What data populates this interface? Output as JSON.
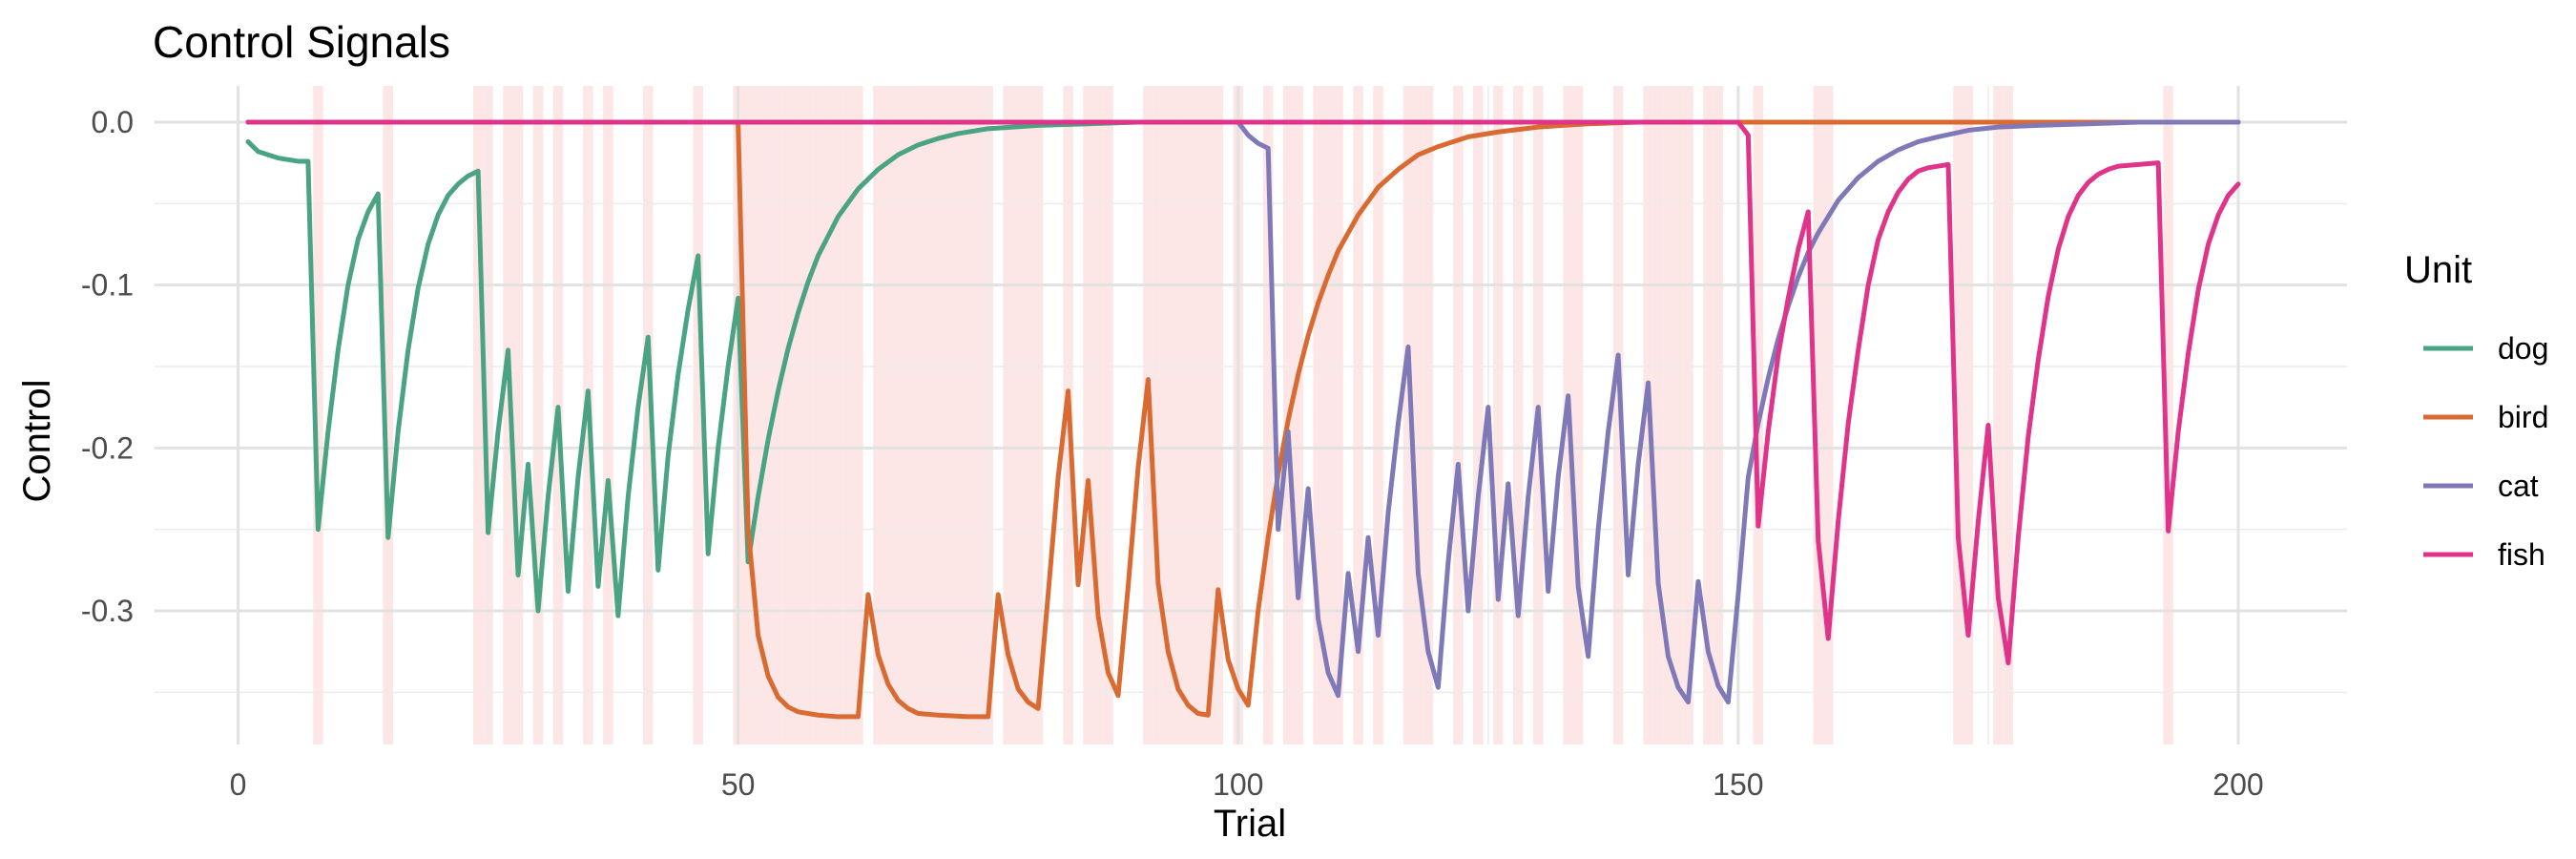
{
  "chart_data": {
    "type": "line",
    "title": "Control Signals",
    "xlabel": "Trial",
    "ylabel": "Control",
    "xlim": [
      1,
      200
    ],
    "ylim": [
      -0.38,
      0.0
    ],
    "x_ticks": [
      0,
      50,
      100,
      150,
      200
    ],
    "y_ticks": [
      0.0,
      -0.1,
      -0.2,
      -0.3
    ],
    "y_tick_labels": [
      "0.0",
      "-0.1",
      "-0.2",
      "-0.3"
    ],
    "grid": true,
    "legend": {
      "title": "Unit",
      "position": "right"
    },
    "highlight_color": "#fde6e6",
    "highlighted_trials": [
      8,
      15,
      24,
      25,
      27,
      28,
      30,
      32,
      35,
      37,
      41,
      46,
      50,
      51,
      52,
      53,
      54,
      55,
      56,
      57,
      58,
      59,
      60,
      61,
      62,
      64,
      65,
      66,
      67,
      68,
      69,
      70,
      71,
      72,
      73,
      74,
      75,
      77,
      78,
      79,
      80,
      83,
      85,
      86,
      87,
      91,
      92,
      93,
      94,
      95,
      96,
      97,
      98,
      100,
      103,
      105,
      106,
      108,
      109,
      110,
      112,
      114,
      117,
      118,
      119,
      122,
      124,
      126,
      128,
      130,
      133,
      134,
      138,
      141,
      142,
      143,
      144,
      145,
      147,
      148,
      152,
      158,
      159,
      172,
      173,
      176,
      177,
      193
    ],
    "series": [
      {
        "name": "dog",
        "color": "#4aa383",
        "points": [
          [
            1,
            -0.012
          ],
          [
            2,
            -0.018
          ],
          [
            4,
            -0.022
          ],
          [
            6,
            -0.024
          ],
          [
            7,
            -0.024
          ],
          [
            8,
            -0.25
          ],
          [
            9,
            -0.19
          ],
          [
            10,
            -0.14
          ],
          [
            11,
            -0.1
          ],
          [
            12,
            -0.072
          ],
          [
            13,
            -0.055
          ],
          [
            14,
            -0.044
          ],
          [
            15,
            -0.255
          ],
          [
            16,
            -0.19
          ],
          [
            17,
            -0.14
          ],
          [
            18,
            -0.102
          ],
          [
            19,
            -0.075
          ],
          [
            20,
            -0.057
          ],
          [
            21,
            -0.045
          ],
          [
            22,
            -0.038
          ],
          [
            23,
            -0.033
          ],
          [
            24,
            -0.03
          ],
          [
            25,
            -0.252
          ],
          [
            26,
            -0.19
          ],
          [
            27,
            -0.14
          ],
          [
            28,
            -0.278
          ],
          [
            29,
            -0.21
          ],
          [
            30,
            -0.3
          ],
          [
            31,
            -0.23
          ],
          [
            32,
            -0.175
          ],
          [
            33,
            -0.288
          ],
          [
            34,
            -0.218
          ],
          [
            35,
            -0.165
          ],
          [
            36,
            -0.285
          ],
          [
            37,
            -0.22
          ],
          [
            38,
            -0.303
          ],
          [
            39,
            -0.23
          ],
          [
            40,
            -0.175
          ],
          [
            41,
            -0.132
          ],
          [
            42,
            -0.275
          ],
          [
            43,
            -0.205
          ],
          [
            44,
            -0.155
          ],
          [
            45,
            -0.115
          ],
          [
            46,
            -0.082
          ],
          [
            47,
            -0.265
          ],
          [
            48,
            -0.2
          ],
          [
            49,
            -0.15
          ],
          [
            50,
            -0.108
          ],
          [
            51,
            -0.27
          ],
          [
            52,
            -0.23
          ],
          [
            53,
            -0.195
          ],
          [
            54,
            -0.165
          ],
          [
            55,
            -0.139
          ],
          [
            56,
            -0.117
          ],
          [
            57,
            -0.098
          ],
          [
            58,
            -0.082
          ],
          [
            60,
            -0.058
          ],
          [
            62,
            -0.041
          ],
          [
            64,
            -0.029
          ],
          [
            66,
            -0.02
          ],
          [
            68,
            -0.014
          ],
          [
            70,
            -0.01
          ],
          [
            72,
            -0.007
          ],
          [
            75,
            -0.004
          ],
          [
            80,
            -0.002
          ],
          [
            85,
            -0.001
          ],
          [
            90,
            0.0
          ],
          [
            200,
            0.0
          ]
        ]
      },
      {
        "name": "bird",
        "color": "#d96a32",
        "points": [
          [
            1,
            0.0
          ],
          [
            50,
            0.0
          ],
          [
            51,
            -0.25
          ],
          [
            52,
            -0.315
          ],
          [
            53,
            -0.34
          ],
          [
            54,
            -0.353
          ],
          [
            55,
            -0.359
          ],
          [
            56,
            -0.362
          ],
          [
            58,
            -0.364
          ],
          [
            60,
            -0.365
          ],
          [
            62,
            -0.365
          ],
          [
            63,
            -0.29
          ],
          [
            64,
            -0.327
          ],
          [
            65,
            -0.345
          ],
          [
            66,
            -0.355
          ],
          [
            67,
            -0.36
          ],
          [
            68,
            -0.363
          ],
          [
            70,
            -0.364
          ],
          [
            73,
            -0.365
          ],
          [
            75,
            -0.365
          ],
          [
            76,
            -0.29
          ],
          [
            77,
            -0.327
          ],
          [
            78,
            -0.348
          ],
          [
            79,
            -0.356
          ],
          [
            80,
            -0.36
          ],
          [
            81,
            -0.29
          ],
          [
            82,
            -0.218
          ],
          [
            83,
            -0.165
          ],
          [
            84,
            -0.284
          ],
          [
            85,
            -0.22
          ],
          [
            86,
            -0.303
          ],
          [
            87,
            -0.338
          ],
          [
            88,
            -0.352
          ],
          [
            89,
            -0.285
          ],
          [
            90,
            -0.212
          ],
          [
            91,
            -0.158
          ],
          [
            92,
            -0.283
          ],
          [
            93,
            -0.325
          ],
          [
            94,
            -0.348
          ],
          [
            95,
            -0.358
          ],
          [
            96,
            -0.363
          ],
          [
            97,
            -0.364
          ],
          [
            98,
            -0.287
          ],
          [
            99,
            -0.33
          ],
          [
            100,
            -0.348
          ],
          [
            101,
            -0.358
          ],
          [
            102,
            -0.3
          ],
          [
            103,
            -0.255
          ],
          [
            104,
            -0.216
          ],
          [
            105,
            -0.183
          ],
          [
            106,
            -0.155
          ],
          [
            107,
            -0.131
          ],
          [
            108,
            -0.111
          ],
          [
            109,
            -0.094
          ],
          [
            110,
            -0.079
          ],
          [
            112,
            -0.057
          ],
          [
            114,
            -0.04
          ],
          [
            116,
            -0.029
          ],
          [
            118,
            -0.02
          ],
          [
            120,
            -0.015
          ],
          [
            123,
            -0.009
          ],
          [
            126,
            -0.006
          ],
          [
            130,
            -0.003
          ],
          [
            135,
            -0.001
          ],
          [
            140,
            0.0
          ],
          [
            200,
            0.0
          ]
        ]
      },
      {
        "name": "cat",
        "color": "#8079b8",
        "points": [
          [
            1,
            0.0
          ],
          [
            100,
            0.0
          ],
          [
            101,
            -0.008
          ],
          [
            102,
            -0.013
          ],
          [
            103,
            -0.016
          ],
          [
            104,
            -0.25
          ],
          [
            105,
            -0.19
          ],
          [
            106,
            -0.292
          ],
          [
            107,
            -0.225
          ],
          [
            108,
            -0.305
          ],
          [
            109,
            -0.338
          ],
          [
            110,
            -0.352
          ],
          [
            111,
            -0.277
          ],
          [
            112,
            -0.325
          ],
          [
            113,
            -0.255
          ],
          [
            114,
            -0.315
          ],
          [
            115,
            -0.24
          ],
          [
            116,
            -0.185
          ],
          [
            117,
            -0.138
          ],
          [
            118,
            -0.277
          ],
          [
            119,
            -0.325
          ],
          [
            120,
            -0.347
          ],
          [
            121,
            -0.27
          ],
          [
            122,
            -0.21
          ],
          [
            123,
            -0.3
          ],
          [
            124,
            -0.23
          ],
          [
            125,
            -0.175
          ],
          [
            126,
            -0.293
          ],
          [
            127,
            -0.222
          ],
          [
            128,
            -0.303
          ],
          [
            129,
            -0.23
          ],
          [
            130,
            -0.175
          ],
          [
            131,
            -0.288
          ],
          [
            132,
            -0.218
          ],
          [
            133,
            -0.168
          ],
          [
            134,
            -0.285
          ],
          [
            135,
            -0.328
          ],
          [
            136,
            -0.25
          ],
          [
            137,
            -0.19
          ],
          [
            138,
            -0.143
          ],
          [
            139,
            -0.278
          ],
          [
            140,
            -0.21
          ],
          [
            141,
            -0.16
          ],
          [
            142,
            -0.283
          ],
          [
            143,
            -0.328
          ],
          [
            144,
            -0.347
          ],
          [
            145,
            -0.356
          ],
          [
            146,
            -0.282
          ],
          [
            147,
            -0.325
          ],
          [
            148,
            -0.346
          ],
          [
            149,
            -0.356
          ],
          [
            150,
            -0.29
          ],
          [
            151,
            -0.218
          ],
          [
            152,
            -0.185
          ],
          [
            153,
            -0.157
          ],
          [
            154,
            -0.133
          ],
          [
            155,
            -0.113
          ],
          [
            156,
            -0.095
          ],
          [
            157,
            -0.08
          ],
          [
            158,
            -0.068
          ],
          [
            160,
            -0.048
          ],
          [
            162,
            -0.034
          ],
          [
            164,
            -0.024
          ],
          [
            166,
            -0.017
          ],
          [
            168,
            -0.012
          ],
          [
            170,
            -0.009
          ],
          [
            173,
            -0.005
          ],
          [
            176,
            -0.003
          ],
          [
            180,
            -0.002
          ],
          [
            185,
            -0.001
          ],
          [
            190,
            0.0
          ],
          [
            200,
            0.0
          ]
        ]
      },
      {
        "name": "fish",
        "color": "#e0338a",
        "points": [
          [
            1,
            0.0
          ],
          [
            150,
            0.0
          ],
          [
            151,
            -0.008
          ],
          [
            152,
            -0.248
          ],
          [
            153,
            -0.19
          ],
          [
            154,
            -0.143
          ],
          [
            155,
            -0.108
          ],
          [
            156,
            -0.078
          ],
          [
            157,
            -0.055
          ],
          [
            158,
            -0.257
          ],
          [
            159,
            -0.317
          ],
          [
            160,
            -0.245
          ],
          [
            161,
            -0.185
          ],
          [
            162,
            -0.14
          ],
          [
            163,
            -0.1
          ],
          [
            164,
            -0.072
          ],
          [
            165,
            -0.055
          ],
          [
            166,
            -0.043
          ],
          [
            167,
            -0.035
          ],
          [
            168,
            -0.03
          ],
          [
            169,
            -0.028
          ],
          [
            170,
            -0.027
          ],
          [
            171,
            -0.026
          ],
          [
            172,
            -0.255
          ],
          [
            173,
            -0.315
          ],
          [
            174,
            -0.245
          ],
          [
            175,
            -0.186
          ],
          [
            176,
            -0.292
          ],
          [
            177,
            -0.332
          ],
          [
            178,
            -0.255
          ],
          [
            179,
            -0.193
          ],
          [
            180,
            -0.146
          ],
          [
            181,
            -0.107
          ],
          [
            182,
            -0.078
          ],
          [
            183,
            -0.058
          ],
          [
            184,
            -0.045
          ],
          [
            185,
            -0.037
          ],
          [
            186,
            -0.032
          ],
          [
            187,
            -0.029
          ],
          [
            188,
            -0.027
          ],
          [
            190,
            -0.026
          ],
          [
            192,
            -0.025
          ],
          [
            193,
            -0.251
          ],
          [
            194,
            -0.19
          ],
          [
            195,
            -0.142
          ],
          [
            196,
            -0.103
          ],
          [
            197,
            -0.075
          ],
          [
            198,
            -0.057
          ],
          [
            199,
            -0.045
          ],
          [
            200,
            -0.038
          ]
        ]
      }
    ]
  }
}
